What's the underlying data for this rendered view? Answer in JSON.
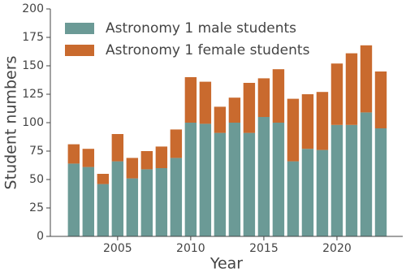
{
  "chart_data": {
    "type": "stacked-bar",
    "x_label": "Year",
    "y_label": "Student numbers",
    "x": [
      2002,
      2003,
      2004,
      2005,
      2006,
      2007,
      2008,
      2009,
      2010,
      2011,
      2012,
      2013,
      2014,
      2015,
      2016,
      2017,
      2018,
      2019,
      2020,
      2021,
      2022,
      2023
    ],
    "series": [
      {
        "name": "Astronomy 1 male students",
        "color": "#6b9a96",
        "values": [
          64,
          61,
          46,
          66,
          51,
          59,
          60,
          69,
          100,
          99,
          91,
          100,
          91,
          105,
          100,
          66,
          77,
          76,
          98,
          98,
          109,
          95
        ]
      },
      {
        "name": "Astronomy 1 female students",
        "color": "#c96a2e",
        "values": [
          17,
          16,
          9,
          24,
          18,
          16,
          19,
          25,
          40,
          37,
          23,
          22,
          44,
          34,
          47,
          55,
          48,
          51,
          54,
          63,
          59,
          50
        ]
      }
    ],
    "xlim": [
      2000.4,
      2024.5
    ],
    "xticks": [
      2005,
      2010,
      2015,
      2020
    ],
    "ylim": [
      0,
      200
    ],
    "yticks": [
      0,
      25,
      50,
      75,
      100,
      125,
      150,
      175,
      200
    ],
    "legend": "upper-left"
  }
}
